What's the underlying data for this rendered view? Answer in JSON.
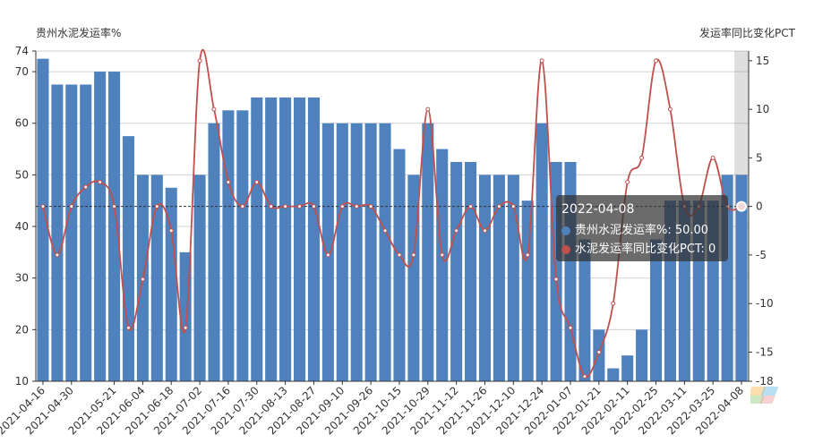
{
  "chart_data": {
    "type": "bar+line",
    "x": [
      "2021-04-16",
      "2021-04-23",
      "2021-04-30",
      "2021-05-07",
      "2021-05-14",
      "2021-05-21",
      "2021-05-28",
      "2021-06-04",
      "2021-06-11",
      "2021-06-18",
      "2021-06-25",
      "2021-07-02",
      "2021-07-09",
      "2021-07-16",
      "2021-07-23",
      "2021-07-30",
      "2021-08-06",
      "2021-08-13",
      "2021-08-20",
      "2021-08-27",
      "2021-09-03",
      "2021-09-10",
      "2021-09-17",
      "2021-09-26",
      "2021-10-01",
      "2021-10-15",
      "2021-10-22",
      "2021-10-29",
      "2021-11-05",
      "2021-11-12",
      "2021-11-19",
      "2021-11-26",
      "2021-12-03",
      "2021-12-10",
      "2021-12-17",
      "2021-12-24",
      "2021-12-31",
      "2022-01-07",
      "2022-01-14",
      "2022-01-21",
      "2022-01-28",
      "2022-02-11",
      "2022-02-18",
      "2022-02-25",
      "2022-03-04",
      "2022-03-11",
      "2022-03-18",
      "2022-03-25",
      "2022-04-01",
      "2022-04-08"
    ],
    "xtick_labels": [
      "2021-04-16",
      "2021-04-30",
      "2021-05-21",
      "2021-06-04",
      "2021-06-18",
      "2021-07-02",
      "2021-07-16",
      "2021-07-30",
      "2021-08-13",
      "2021-08-27",
      "2021-09-10",
      "2021-09-26",
      "2021-10-15",
      "2021-10-29",
      "2021-11-12",
      "2021-11-26",
      "2021-12-10",
      "2021-12-24",
      "2022-01-07",
      "2022-01-21",
      "2022-02-11",
      "2022-02-25",
      "2022-03-11",
      "2022-03-25",
      "2022-04-08"
    ],
    "series": [
      {
        "name": "贵州水泥发运率%",
        "type": "bar",
        "axis": "left",
        "color": "#4f81bd",
        "values": [
          72.5,
          67.5,
          67.5,
          67.5,
          70,
          70,
          57.5,
          50,
          50,
          47.5,
          35,
          50,
          60,
          62.5,
          62.5,
          65,
          65,
          65,
          65,
          65,
          60,
          60,
          60,
          60,
          60,
          55,
          50,
          60,
          55,
          52.5,
          52.5,
          50,
          50,
          50,
          45,
          60,
          52.5,
          52.5,
          37.5,
          20,
          12.5,
          15,
          20,
          37.5,
          45,
          45,
          45,
          45,
          50,
          50
        ]
      },
      {
        "name": "水泥发运率同比变化PCT",
        "type": "line",
        "axis": "right",
        "color": "#c0504d",
        "values": [
          0,
          -5,
          0,
          2,
          2.5,
          0,
          -12.5,
          -7.5,
          0,
          -2.5,
          -12.5,
          15,
          10,
          2.5,
          0,
          2.5,
          0,
          0,
          0,
          0,
          -5,
          0,
          0,
          0,
          -2.5,
          -5,
          -5,
          10,
          -5,
          -2.5,
          0,
          -2.5,
          0,
          0,
          -5,
          15,
          -7.5,
          -12.5,
          -17.5,
          -15,
          -10,
          2.5,
          5,
          15,
          10,
          0,
          0,
          5,
          0,
          0
        ]
      }
    ],
    "y_left": {
      "label": "贵州水泥发运率%",
      "min": 10,
      "max": 74,
      "ticks": [
        10,
        20,
        30,
        40,
        50,
        60,
        70,
        74
      ]
    },
    "y_right": {
      "label": "发运率同比变化PCT",
      "min": -18,
      "max": 16,
      "ticks": [
        -18,
        -15,
        -10,
        -5,
        0,
        5,
        10,
        15
      ]
    },
    "grid": true,
    "highlight_index": 49
  },
  "tooltip": {
    "title": "2022-04-08",
    "rows": [
      {
        "text": "贵州水泥发运率%: 50.00",
        "color": "#4f81bd"
      },
      {
        "text": "水泥发运率同比变化PCT: 0",
        "color": "#c0504d"
      }
    ]
  }
}
